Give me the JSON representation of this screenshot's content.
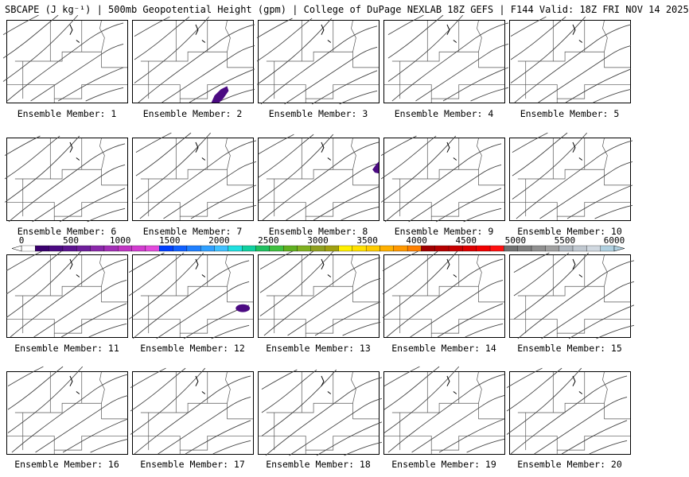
{
  "title": "SBCAPE (J kg⁻¹) | 500mb Geopotential Height (gpm) | College of DuPage NEXLAB 18Z GEFS | F144 Valid: 18Z FRI NOV 14 2025",
  "colorbar": {
    "tick_labels": [
      "0",
      "500",
      "1000",
      "1500",
      "2000",
      "2500",
      "3000",
      "3500",
      "4000",
      "4500",
      "5000",
      "5500",
      "6000"
    ],
    "colors": [
      "#ffffff",
      "#3a006e",
      "#4b0a82",
      "#5c148f",
      "#6e1e9b",
      "#8a28aa",
      "#a22fb6",
      "#c035c3",
      "#d23ccf",
      "#e24adc",
      "#0040ff",
      "#1060ff",
      "#2080ff",
      "#30a0ff",
      "#40c0ff",
      "#20e0e0",
      "#10d0a0",
      "#20c060",
      "#40c040",
      "#60b020",
      "#80b020",
      "#90a020",
      "#a0a010",
      "#fff000",
      "#ffe000",
      "#ffcc00",
      "#ffb000",
      "#ff9800",
      "#ff8000",
      "#a00000",
      "#b40000",
      "#c80000",
      "#dc0000",
      "#f00000",
      "#ff1010",
      "#707070",
      "#808080",
      "#909090",
      "#a0a0a0",
      "#b0b8c0",
      "#c0c8d0",
      "#d0d8e0",
      "#b0d0e0"
    ]
  },
  "members": [
    {
      "label": "Ensemble Member: 1",
      "blob": false
    },
    {
      "label": "Ensemble Member: 2",
      "blob": true
    },
    {
      "label": "Ensemble Member: 3",
      "blob": false
    },
    {
      "label": "Ensemble Member: 4",
      "blob": false
    },
    {
      "label": "Ensemble Member: 5",
      "blob": false
    },
    {
      "label": "Ensemble Member: 6",
      "blob": false
    },
    {
      "label": "Ensemble Member: 7",
      "blob": false
    },
    {
      "label": "Ensemble Member: 8",
      "blob": true
    },
    {
      "label": "Ensemble Member: 9",
      "blob": false
    },
    {
      "label": "Ensemble Member: 10",
      "blob": false
    },
    {
      "label": "Ensemble Member: 11",
      "blob": false
    },
    {
      "label": "Ensemble Member: 12",
      "blob": true
    },
    {
      "label": "Ensemble Member: 13",
      "blob": false
    },
    {
      "label": "Ensemble Member: 14",
      "blob": false
    },
    {
      "label": "Ensemble Member: 15",
      "blob": false
    },
    {
      "label": "Ensemble Member: 16",
      "blob": false
    },
    {
      "label": "Ensemble Member: 17",
      "blob": false
    },
    {
      "label": "Ensemble Member: 18",
      "blob": false
    },
    {
      "label": "Ensemble Member: 19",
      "blob": false
    },
    {
      "label": "Ensemble Member: 20",
      "blob": false
    }
  ],
  "cape_color": "#4b0a82"
}
